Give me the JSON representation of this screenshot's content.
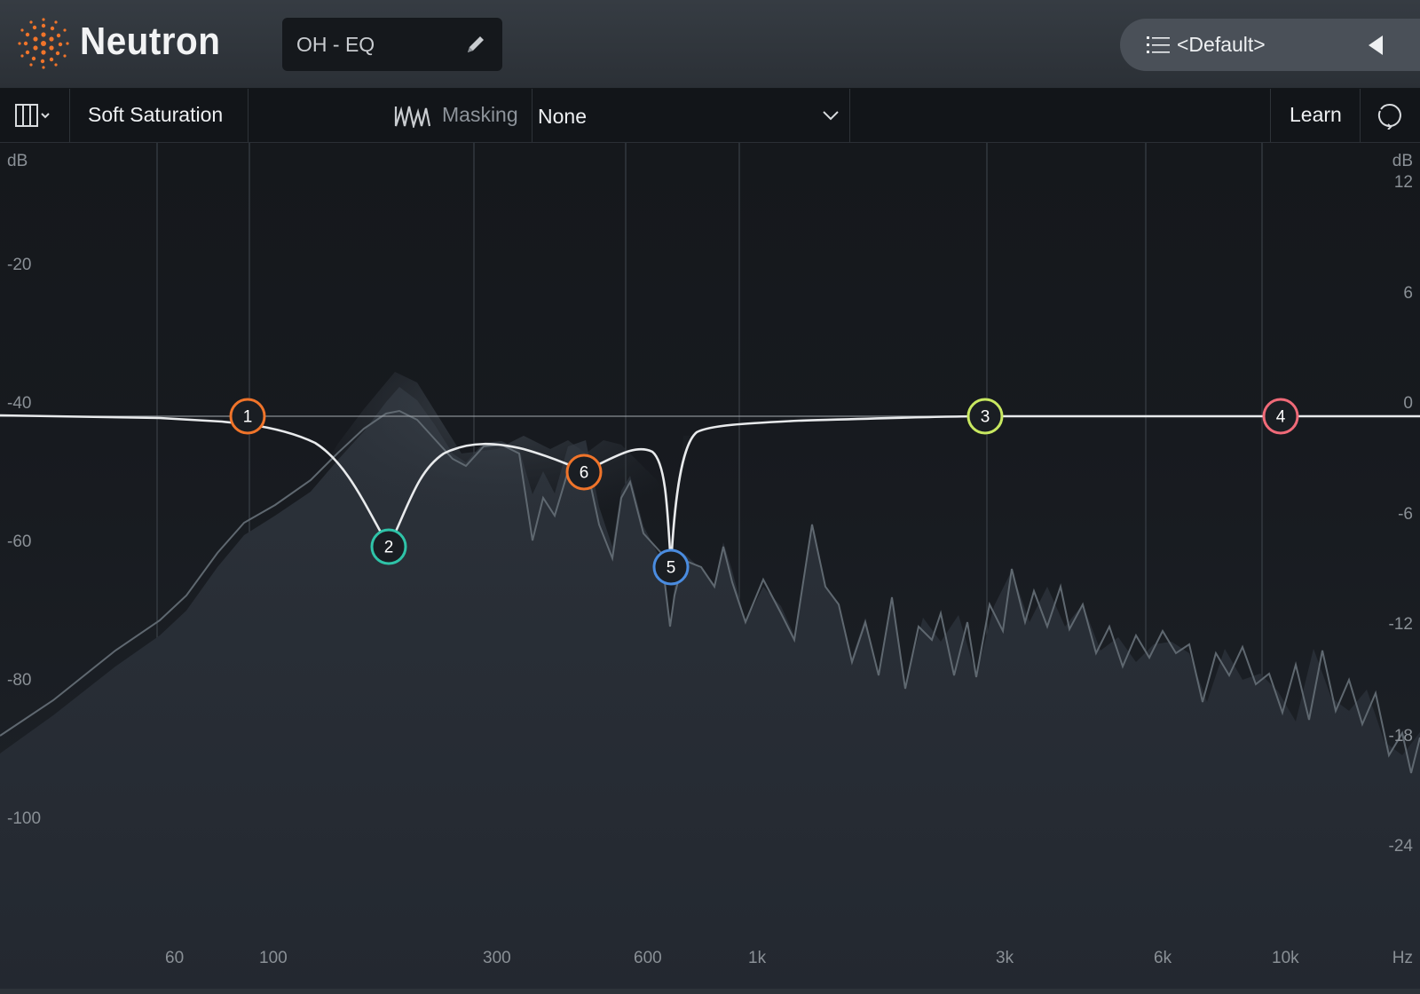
{
  "header": {
    "brand": "Neutron",
    "preset_name": "OH - EQ",
    "preset_menu_label": "<Default>",
    "icons": [
      "neutron-logo-icon",
      "pencil-icon",
      "list-icon",
      "collapse-triangle-icon"
    ]
  },
  "toolbar": {
    "view_toggle_icon": "columns-icon",
    "saturation_label": "Soft Saturation",
    "masking_label": "Masking",
    "masking_value": "None",
    "learn_label": "Learn",
    "reset_icon": "reset-icon"
  },
  "graph": {
    "left_unit": "dB",
    "left_ticks": [
      "-20",
      "-40",
      "-60",
      "-80",
      "-100"
    ],
    "right_unit": "dB",
    "right_ticks": [
      "12",
      "6",
      "0",
      "-6",
      "-12",
      "-18",
      "-24"
    ],
    "freq_unit": "Hz",
    "freq_ticks": [
      "60",
      "100",
      "300",
      "600",
      "1k",
      "3k",
      "6k",
      "10k"
    ],
    "nodes": [
      {
        "label": "1",
        "color": "#f0742a"
      },
      {
        "label": "2",
        "color": "#2fc3a8"
      },
      {
        "label": "3",
        "color": "#c8e860"
      },
      {
        "label": "4",
        "color": "#f06a78"
      },
      {
        "label": "5",
        "color": "#4a8ce0"
      },
      {
        "label": "6",
        "color": "#f0742a"
      }
    ]
  },
  "colors": {
    "background": "#1b1f24",
    "spectrum_fill": "#272c33",
    "spectrum_line": "#5f6870",
    "eq_curve": "#e8eaec",
    "accent_orange": "#f0742a"
  }
}
